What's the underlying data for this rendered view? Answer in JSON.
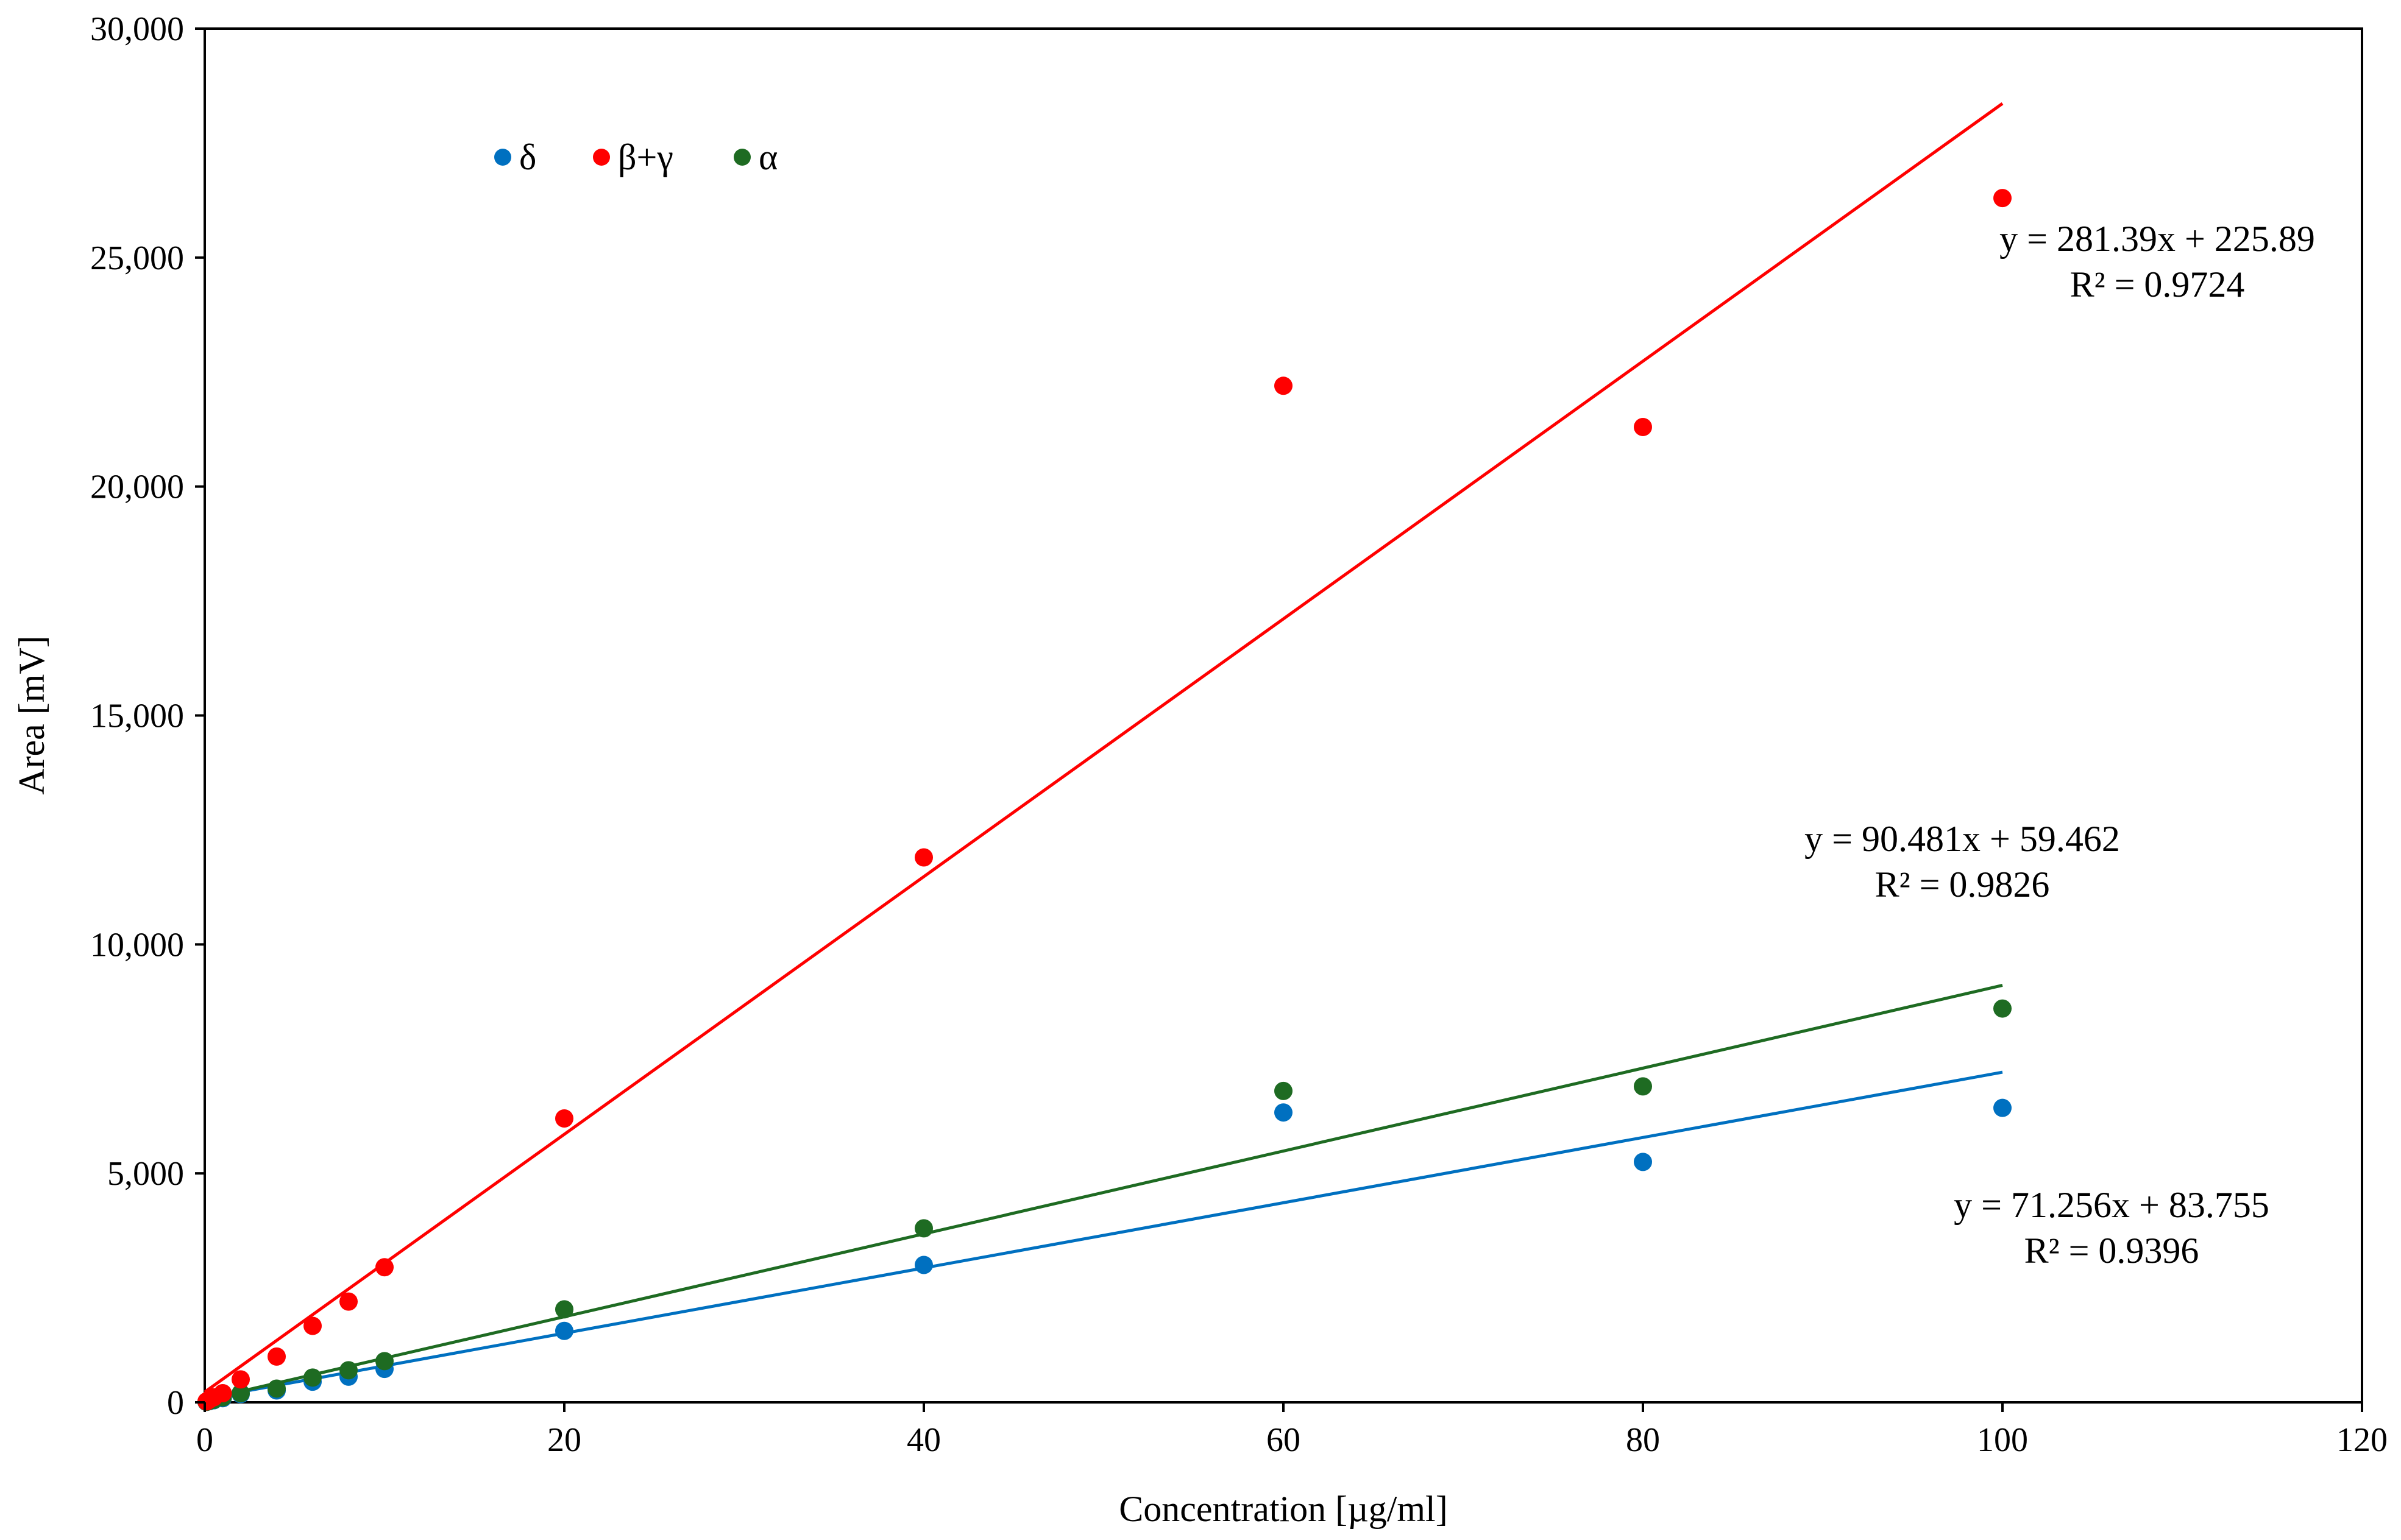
{
  "chart_data": {
    "type": "scatter",
    "title": "",
    "xlabel": "Concentration [µg/ml]",
    "ylabel": "Area [mV]",
    "xlim": [
      0,
      120
    ],
    "ylim": [
      0,
      30000
    ],
    "xticks": [
      0,
      20,
      40,
      60,
      80,
      100,
      120
    ],
    "xtick_labels": [
      "0",
      "20",
      "40",
      "60",
      "80",
      "100",
      "120"
    ],
    "yticks": [
      0,
      5000,
      10000,
      15000,
      20000,
      25000,
      30000
    ],
    "ytick_labels": [
      "0",
      "5,000",
      "10,000",
      "15,000",
      "20,000",
      "25,000",
      "30,000"
    ],
    "grid": false,
    "legend_position": "top-left",
    "x": [
      0.1,
      0.25,
      0.5,
      1,
      2,
      4,
      6,
      8,
      10,
      20,
      40,
      60,
      80,
      100
    ],
    "series": [
      {
        "name": "δ",
        "color": "#0070C0",
        "values": [
          10,
          25,
          45,
          90,
          180,
          260,
          450,
          560,
          730,
          1560,
          3000,
          6330,
          5250,
          6430
        ],
        "trendline": {
          "slope": 71.256,
          "intercept": 83.755,
          "x_range": [
            0,
            100
          ],
          "equation": "y = 71.256x + 83.755",
          "r2": "R² = 0.9396"
        }
      },
      {
        "name": "β+γ",
        "color": "#FF0000",
        "values": [
          20,
          60,
          110,
          200,
          500,
          1000,
          1670,
          2200,
          2950,
          6200,
          11900,
          22200,
          21300,
          26300
        ],
        "trendline": {
          "slope": 281.39,
          "intercept": 225.89,
          "x_range": [
            0,
            100
          ],
          "equation": "y = 281.39x + 225.89",
          "r2": "R² = 0.9724"
        }
      },
      {
        "name": "α",
        "color": "#1E6B22",
        "values": [
          10,
          30,
          55,
          110,
          200,
          300,
          540,
          700,
          900,
          2030,
          3800,
          6800,
          6900,
          8600
        ],
        "trendline": {
          "slope": 90.481,
          "intercept": 59.462,
          "x_range": [
            0,
            100
          ],
          "equation": "y = 90.481x + 59.462",
          "r2": "R² = 0.9826"
        }
      }
    ]
  }
}
